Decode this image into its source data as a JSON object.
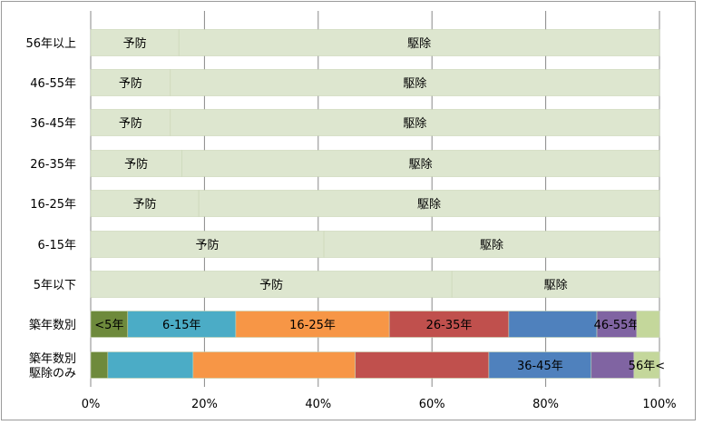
{
  "chart_data": {
    "type": "bar",
    "orientation": "horizontal",
    "stacked": true,
    "normalized": true,
    "title": "",
    "xlabel": "",
    "ylabel": "",
    "xlim": [
      0,
      100
    ],
    "x_ticks": [
      "0%",
      "20%",
      "40%",
      "60%",
      "80%",
      "100%"
    ],
    "grid": true,
    "legend": "none",
    "categories": [
      [
        "56年以上"
      ],
      [
        "46-55年"
      ],
      [
        "36-45年"
      ],
      [
        "26-35年"
      ],
      [
        "16-25年"
      ],
      [
        "6-15年"
      ],
      [
        "5年以下"
      ],
      [
        "築年数別"
      ],
      [
        "築年数別",
        "駆除のみ"
      ]
    ],
    "rows": [
      {
        "segments": [
          {
            "label": "予防",
            "value": 15.5,
            "color": "#dde6cf"
          },
          {
            "label": "駆除",
            "value": 84.5,
            "color": "#dde6cf"
          }
        ]
      },
      {
        "segments": [
          {
            "label": "予防",
            "value": 14,
            "color": "#dde6cf"
          },
          {
            "label": "駆除",
            "value": 86,
            "color": "#dde6cf"
          }
        ]
      },
      {
        "segments": [
          {
            "label": "予防",
            "value": 14,
            "color": "#dde6cf"
          },
          {
            "label": "駆除",
            "value": 86,
            "color": "#dde6cf"
          }
        ]
      },
      {
        "segments": [
          {
            "label": "予防",
            "value": 16,
            "color": "#dde6cf"
          },
          {
            "label": "駆除",
            "value": 84,
            "color": "#dde6cf"
          }
        ]
      },
      {
        "segments": [
          {
            "label": "予防",
            "value": 19,
            "color": "#dde6cf"
          },
          {
            "label": "駆除",
            "value": 81,
            "color": "#dde6cf"
          }
        ]
      },
      {
        "segments": [
          {
            "label": "予防",
            "value": 41,
            "color": "#dde6cf"
          },
          {
            "label": "駆除",
            "value": 59,
            "color": "#dde6cf"
          }
        ]
      },
      {
        "segments": [
          {
            "label": "予防",
            "value": 63.5,
            "color": "#dde6cf"
          },
          {
            "label": "駆除",
            "value": 36.5,
            "color": "#dde6cf"
          }
        ]
      },
      {
        "segments": [
          {
            "label": "<5年",
            "value": 6.5,
            "color": "#6e8a3c"
          },
          {
            "label": "6-15年",
            "value": 19,
            "color": "#4bacc6"
          },
          {
            "label": "16-25年",
            "value": 27,
            "color": "#f79646"
          },
          {
            "label": "26-35年",
            "value": 21,
            "color": "#c0504d"
          },
          {
            "label": "",
            "value": 15.5,
            "color": "#4f81bd"
          },
          {
            "label": "46-55年",
            "value": 7,
            "color": "#8064a2"
          },
          {
            "label": "",
            "value": 4,
            "color": "#c4d79b"
          }
        ]
      },
      {
        "segments": [
          {
            "label": "",
            "value": 3,
            "color": "#6e8a3c"
          },
          {
            "label": "",
            "value": 15,
            "color": "#4bacc6"
          },
          {
            "label": "",
            "value": 28.5,
            "color": "#f79646"
          },
          {
            "label": "",
            "value": 23.5,
            "color": "#c0504d"
          },
          {
            "label": "36-45年",
            "value": 18,
            "color": "#4f81bd"
          },
          {
            "label": "",
            "value": 7.5,
            "color": "#8064a2"
          },
          {
            "label": "56年<",
            "value": 4.5,
            "color": "#c4d79b"
          }
        ]
      }
    ],
    "colors": {
      "gridline": "#888888",
      "bar_border": "#c9d4b5"
    }
  }
}
